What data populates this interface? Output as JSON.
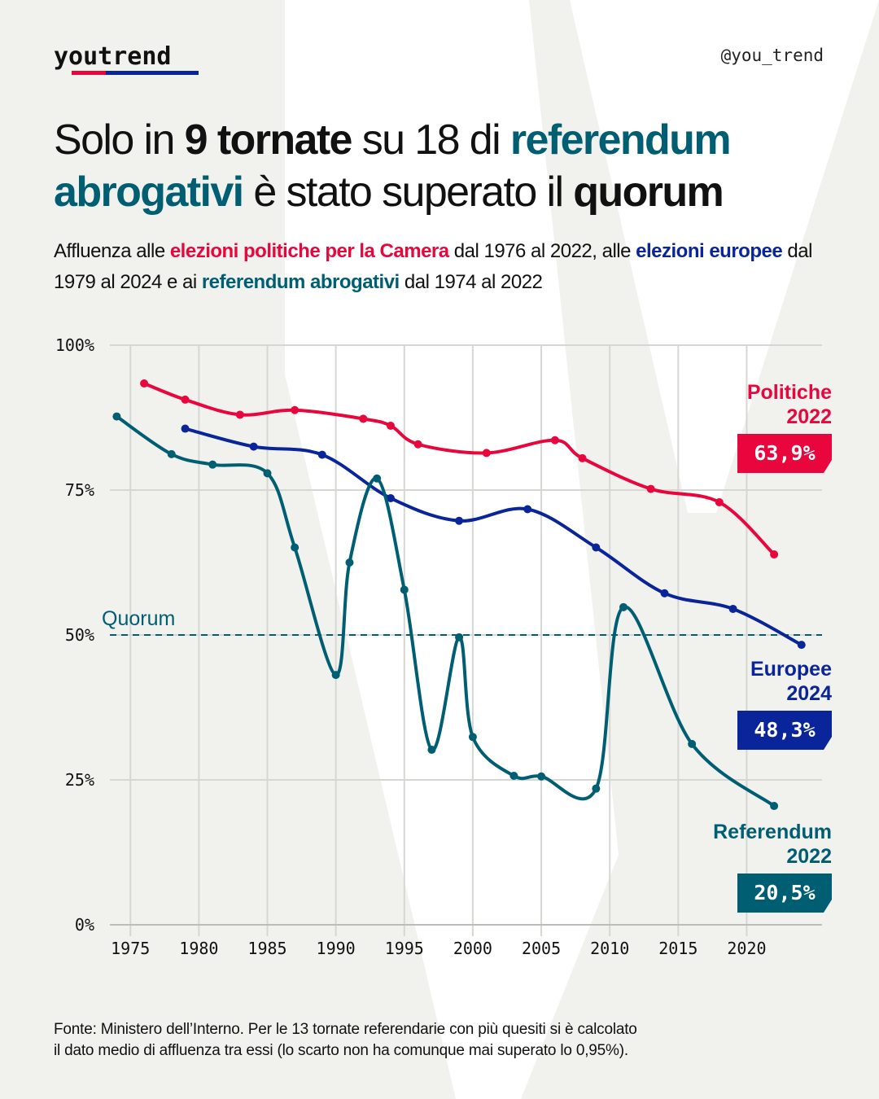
{
  "brand": {
    "logo": "youtrend",
    "handle": "@you_trend"
  },
  "title": {
    "t1": "Solo in ",
    "t2": "9 tornate",
    "t3": " su 18 di ",
    "t4": "referendum abrogativi",
    "t5": " è stato superato il ",
    "t6": "quorum"
  },
  "subtitle": {
    "s1": "Affluenza alle ",
    "s2": "elezioni politiche per la Camera",
    "s3": " dal 1976 al 2022, alle ",
    "s4": "elezioni europee",
    "s5": " dal 1979 al 2024 e ai ",
    "s6": "referendum abrogativi",
    "s7": " dal 1974 al 2022"
  },
  "footnote": {
    "line1": "Fonte: Ministero dell’Interno. Per le 13 tornate referendarie con più quesiti si è calcolato",
    "line2": "il dato medio di affluenza tra essi (lo scarto non ha comunque mai superato lo 0,95%)."
  },
  "colors": {
    "politiche": "#e8063c",
    "europee": "#0a2599",
    "referendum": "#005e73",
    "grid": "#d6d6d2",
    "background": "#f1f1ee"
  },
  "chart_data": {
    "type": "line",
    "xlim": [
      1973.5,
      2025.5
    ],
    "ylim": [
      0,
      100
    ],
    "x_ticks": [
      1975,
      1980,
      1985,
      1990,
      1995,
      2000,
      2005,
      2010,
      2015,
      2020
    ],
    "y_ticks": [
      {
        "value": 0,
        "label": "0%"
      },
      {
        "value": 25,
        "label": "25%"
      },
      {
        "value": 50,
        "label": "50%"
      },
      {
        "value": 75,
        "label": "75%"
      },
      {
        "value": 100,
        "label": "100%"
      }
    ],
    "grid": true,
    "reference_line": {
      "value": 50,
      "label": "Quorum"
    },
    "series": [
      {
        "key": "politiche",
        "end_label": [
          "Politiche",
          "2022"
        ],
        "end_value": "63,9%",
        "points": [
          [
            1976,
            93.4
          ],
          [
            1979,
            90.6
          ],
          [
            1983,
            88.0
          ],
          [
            1987,
            88.8
          ],
          [
            1992,
            87.3
          ],
          [
            1994,
            86.1
          ],
          [
            1996,
            82.9
          ],
          [
            2001,
            81.4
          ],
          [
            2006,
            83.6
          ],
          [
            2008,
            80.5
          ],
          [
            2013,
            75.2
          ],
          [
            2018,
            72.9
          ],
          [
            2022,
            63.9
          ]
        ]
      },
      {
        "key": "europee",
        "end_label": [
          "Europee",
          "2024"
        ],
        "end_value": "48,3%",
        "points": [
          [
            1979,
            85.6
          ],
          [
            1984,
            82.5
          ],
          [
            1989,
            81.1
          ],
          [
            1994,
            73.6
          ],
          [
            1999,
            69.7
          ],
          [
            2004,
            71.7
          ],
          [
            2009,
            65.1
          ],
          [
            2014,
            57.2
          ],
          [
            2019,
            54.5
          ],
          [
            2024,
            48.3
          ]
        ]
      },
      {
        "key": "referendum",
        "end_label": [
          "Referendum",
          "2022"
        ],
        "end_value": "20,5%",
        "points": [
          [
            1974,
            87.7
          ],
          [
            1978,
            81.2
          ],
          [
            1981,
            79.4
          ],
          [
            1985,
            77.9
          ],
          [
            1987,
            65.1
          ],
          [
            1990,
            43.1
          ],
          [
            1991,
            62.5
          ],
          [
            1993,
            77.0
          ],
          [
            1995,
            57.8
          ],
          [
            1997,
            30.2
          ],
          [
            1999,
            49.6
          ],
          [
            2000,
            32.4
          ],
          [
            2003,
            25.7
          ],
          [
            2005,
            25.6
          ],
          [
            2009,
            23.5
          ],
          [
            2011,
            54.8
          ],
          [
            2016,
            31.2
          ],
          [
            2022,
            20.5
          ]
        ]
      }
    ]
  }
}
